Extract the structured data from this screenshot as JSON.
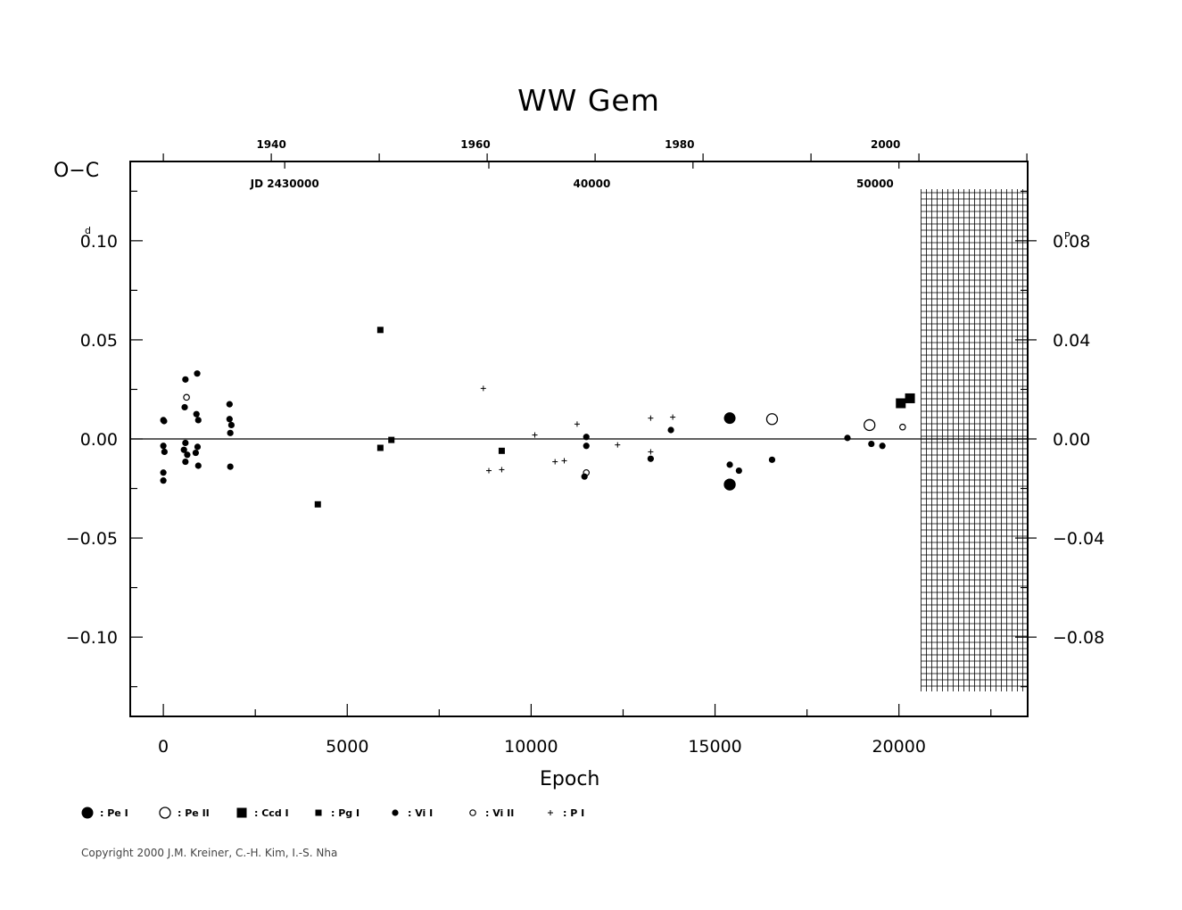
{
  "chart_data": {
    "type": "scatter",
    "title": "WW  Gem",
    "ylabel": "O−C",
    "ylabel_unit_left": "d",
    "ylabel_unit_right": "P",
    "xlabel": "Epoch",
    "xlim": [
      -900,
      23500
    ],
    "ylim": [
      -0.14,
      0.14
    ],
    "zero_line": true,
    "x_ticks": [
      "0",
      "5000",
      "10000",
      "15000",
      "20000"
    ],
    "x_tick_values": [
      0,
      5000,
      10000,
      15000,
      20000
    ],
    "y_ticks": [
      "0.10",
      "0.05",
      "0.00",
      "−0.05",
      "−0.10"
    ],
    "y_tick_values": [
      0.1,
      0.05,
      0.0,
      -0.05,
      -0.1
    ],
    "y2_ticks": [
      "0.08",
      "0.04",
      "0.00",
      "−0.04",
      "−0.08"
    ],
    "y2_tick_values": [
      0.1,
      0.05,
      0.0,
      -0.05,
      -0.1
    ],
    "top_year_label_text": [
      "1940",
      "1960",
      "1980",
      "2000"
    ],
    "top_year_epochs": [
      3300,
      8850,
      14400,
      20000
    ],
    "top_jd_labels": [
      "JD  2430000",
      "40000",
      "50000"
    ],
    "top_jd_epochs": [
      3300,
      11650,
      19350
    ],
    "future_region_start": 20600,
    "legend": [
      {
        "symbol": "Pe_I",
        "label": ": Pe  I"
      },
      {
        "symbol": "Pe_II",
        "label": ": Pe  II"
      },
      {
        "symbol": "Ccd_I",
        "label": ": Ccd  I"
      },
      {
        "symbol": "Pg_I",
        "label": ": Pg  I"
      },
      {
        "symbol": "Vi_I",
        "label": ": Vi  I"
      },
      {
        "symbol": "Vi_II",
        "label": ": Vi  II"
      },
      {
        "symbol": "P_I",
        "label": ": P  I"
      }
    ],
    "series": [
      {
        "name": "Pe I",
        "symbol": "Pe_I",
        "points": [
          [
            15400,
            0.0105
          ],
          [
            15400,
            -0.023
          ]
        ]
      },
      {
        "name": "Pe II",
        "symbol": "Pe_II",
        "points": [
          [
            16550,
            0.01
          ],
          [
            19200,
            0.007
          ],
          [
            15400,
            -0.023
          ]
        ]
      },
      {
        "name": "Ccd I",
        "symbol": "Ccd_I",
        "points": [
          [
            20050,
            0.018
          ],
          [
            20300,
            0.0205
          ]
        ]
      },
      {
        "name": "Pg I",
        "symbol": "Pg_I",
        "points": [
          [
            5900,
            0.055
          ],
          [
            4200,
            -0.033
          ],
          [
            5900,
            -0.0045
          ],
          [
            6200,
            -0.0005
          ],
          [
            9200,
            -0.006
          ]
        ]
      },
      {
        "name": "Vi I",
        "symbol": "Vi_I",
        "points": [
          [
            0,
            0.0095
          ],
          [
            20,
            0.009
          ],
          [
            0,
            -0.0035
          ],
          [
            30,
            -0.0065
          ],
          [
            0,
            -0.017
          ],
          [
            0,
            -0.021
          ],
          [
            600,
            0.03
          ],
          [
            580,
            0.016
          ],
          [
            600,
            -0.002
          ],
          [
            560,
            -0.0055
          ],
          [
            650,
            -0.008
          ],
          [
            600,
            -0.0115
          ],
          [
            920,
            0.033
          ],
          [
            900,
            0.0125
          ],
          [
            950,
            0.0095
          ],
          [
            930,
            -0.004
          ],
          [
            880,
            -0.007
          ],
          [
            950,
            -0.0135
          ],
          [
            1800,
            0.0175
          ],
          [
            1800,
            0.01
          ],
          [
            1850,
            0.007
          ],
          [
            1820,
            0.003
          ],
          [
            1820,
            -0.014
          ],
          [
            11500,
            0.001
          ],
          [
            11500,
            -0.0035
          ],
          [
            11450,
            -0.019
          ],
          [
            13250,
            -0.01
          ],
          [
            13800,
            0.0045
          ],
          [
            15400,
            -0.013
          ],
          [
            15650,
            -0.016
          ],
          [
            16550,
            -0.0105
          ],
          [
            18600,
            0.0005
          ],
          [
            19250,
            -0.0025
          ],
          [
            19550,
            -0.0035
          ]
        ]
      },
      {
        "name": "Vi II",
        "symbol": "Vi_II",
        "points": [
          [
            630,
            0.021
          ],
          [
            11500,
            -0.017
          ],
          [
            20100,
            0.006
          ]
        ]
      },
      {
        "name": "P I",
        "symbol": "P_I",
        "points": [
          [
            8700,
            0.0255
          ],
          [
            8850,
            -0.016
          ],
          [
            9200,
            -0.0155
          ],
          [
            10100,
            0.002
          ],
          [
            10650,
            -0.0115
          ],
          [
            10900,
            -0.011
          ],
          [
            11250,
            0.0075
          ],
          [
            12350,
            -0.003
          ],
          [
            13250,
            0.0105
          ],
          [
            13250,
            -0.0065
          ],
          [
            13850,
            0.011
          ]
        ]
      }
    ]
  },
  "copyright": "Copyright 2000 J.M. Kreiner, C.-H. Kim, I.-S. Nha"
}
